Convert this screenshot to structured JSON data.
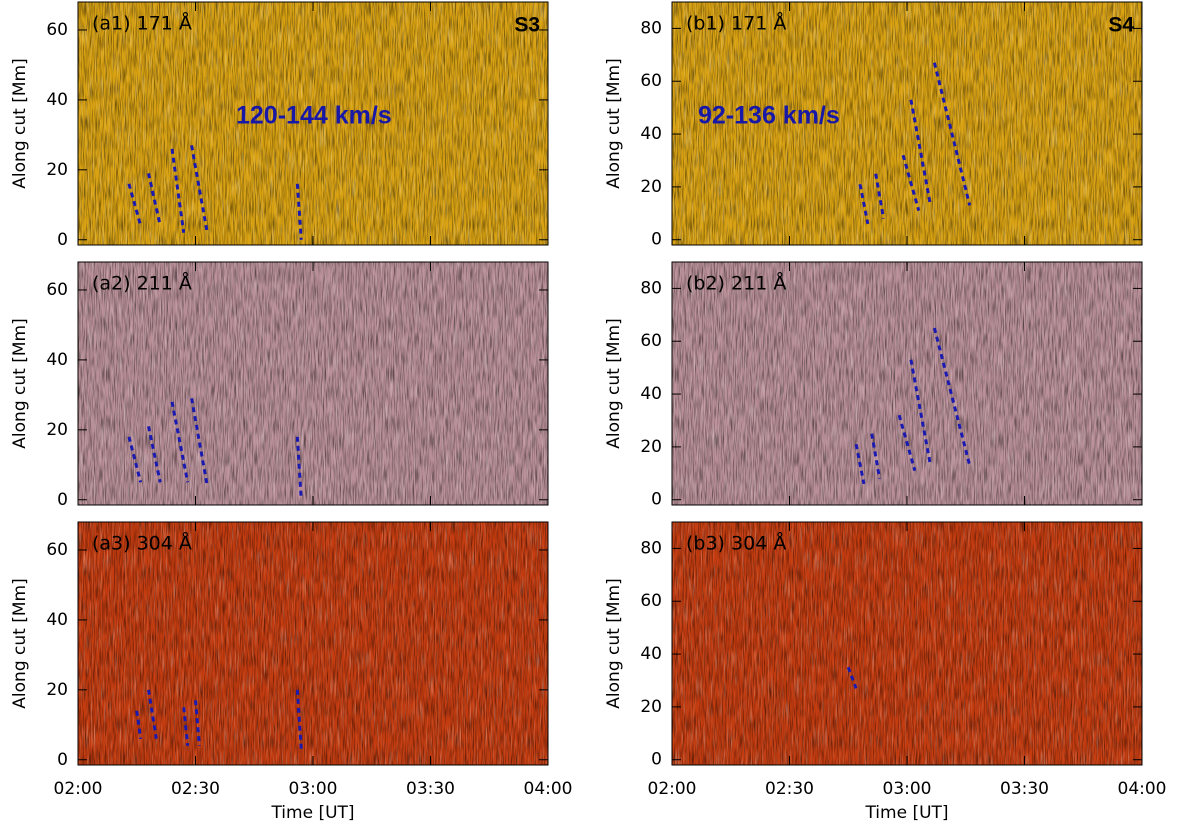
{
  "chart_data": [
    {
      "type": "heatmap",
      "label": "(a1) 171 Å",
      "tag": "S3",
      "annotation": "120-144 km/s",
      "color": "#d9a212",
      "ylabel": "Along cut [Mm]",
      "xlim": [
        "02:00",
        "04:00"
      ],
      "xticks": [
        "02:00",
        "02:30",
        "03:00",
        "03:30",
        "04:00"
      ],
      "ylim": [
        -1.5,
        68
      ],
      "yticks": [
        0,
        20,
        40,
        60
      ],
      "lines": [
        {
          "x": [
            "02:13",
            "02:16"
          ],
          "y": [
            16,
            4
          ]
        },
        {
          "x": [
            "02:18",
            "02:21"
          ],
          "y": [
            19,
            4
          ]
        },
        {
          "x": [
            "02:24",
            "02:27"
          ],
          "y": [
            26,
            2
          ]
        },
        {
          "x": [
            "02:29",
            "02:33"
          ],
          "y": [
            27,
            2
          ]
        },
        {
          "x": [
            "02:56",
            "02:57"
          ],
          "y": [
            16,
            0
          ]
        }
      ]
    },
    {
      "type": "heatmap",
      "label": "(a2) 211 Å",
      "color": "#b98f98",
      "ylabel": "Along cut [Mm]",
      "xlim": [
        "02:00",
        "04:00"
      ],
      "xticks": [
        "02:00",
        "02:30",
        "03:00",
        "03:30",
        "04:00"
      ],
      "ylim": [
        -1.5,
        68
      ],
      "yticks": [
        0,
        20,
        40,
        60
      ],
      "lines": [
        {
          "x": [
            "02:13",
            "02:16"
          ],
          "y": [
            18,
            5
          ]
        },
        {
          "x": [
            "02:18",
            "02:21"
          ],
          "y": [
            21,
            5
          ]
        },
        {
          "x": [
            "02:24",
            "02:28"
          ],
          "y": [
            28,
            5
          ]
        },
        {
          "x": [
            "02:29",
            "02:33"
          ],
          "y": [
            29,
            4
          ]
        },
        {
          "x": [
            "02:56",
            "02:57"
          ],
          "y": [
            18,
            0
          ]
        }
      ]
    },
    {
      "type": "heatmap",
      "label": "(a3) 304 Å",
      "color": "#c43c10",
      "ylabel": "Along cut [Mm]",
      "xlabel": "Time [UT]",
      "xlim": [
        "02:00",
        "04:00"
      ],
      "xticks": [
        "02:00",
        "02:30",
        "03:00",
        "03:30",
        "04:00"
      ],
      "ylim": [
        -1.5,
        68
      ],
      "yticks": [
        0,
        20,
        40,
        60
      ],
      "lines": [
        {
          "x": [
            "02:15",
            "02:16"
          ],
          "y": [
            14,
            6
          ]
        },
        {
          "x": [
            "02:18",
            "02:20"
          ],
          "y": [
            20,
            6
          ]
        },
        {
          "x": [
            "02:27",
            "02:28"
          ],
          "y": [
            15,
            4
          ]
        },
        {
          "x": [
            "02:30",
            "02:31"
          ],
          "y": [
            17,
            4
          ]
        },
        {
          "x": [
            "02:56",
            "02:57"
          ],
          "y": [
            20,
            3
          ]
        }
      ]
    },
    {
      "type": "heatmap",
      "label": "(b1) 171 Å",
      "tag": "S4",
      "annotation": "92-136 km/s",
      "color": "#d9a212",
      "ylabel": "Along cut [Mm]",
      "xlim": [
        "02:00",
        "04:00"
      ],
      "xticks": [
        "02:00",
        "02:30",
        "03:00",
        "03:30",
        "04:00"
      ],
      "ylim": [
        -2,
        90
      ],
      "yticks": [
        0,
        20,
        40,
        60,
        80
      ],
      "lines": [
        {
          "x": [
            "02:48",
            "02:50"
          ],
          "y": [
            21,
            6
          ]
        },
        {
          "x": [
            "02:52",
            "02:54"
          ],
          "y": [
            25,
            8
          ]
        },
        {
          "x": [
            "02:59",
            "03:03"
          ],
          "y": [
            32,
            11
          ]
        },
        {
          "x": [
            "03:01",
            "03:06"
          ],
          "y": [
            53,
            13
          ]
        },
        {
          "x": [
            "03:07",
            "03:16"
          ],
          "y": [
            67,
            13
          ]
        }
      ]
    },
    {
      "type": "heatmap",
      "label": "(b2) 211 Å",
      "color": "#b98f98",
      "ylabel": "Along cut [Mm]",
      "xlim": [
        "02:00",
        "04:00"
      ],
      "xticks": [
        "02:00",
        "02:30",
        "03:00",
        "03:30",
        "04:00"
      ],
      "ylim": [
        -2,
        90
      ],
      "yticks": [
        0,
        20,
        40,
        60,
        80
      ],
      "lines": [
        {
          "x": [
            "02:47",
            "02:49"
          ],
          "y": [
            21,
            6
          ]
        },
        {
          "x": [
            "02:51",
            "02:53"
          ],
          "y": [
            25,
            8
          ]
        },
        {
          "x": [
            "02:58",
            "03:02"
          ],
          "y": [
            32,
            11
          ]
        },
        {
          "x": [
            "03:01",
            "03:06"
          ],
          "y": [
            53,
            13
          ]
        },
        {
          "x": [
            "03:07",
            "03:16"
          ],
          "y": [
            65,
            13
          ]
        }
      ]
    },
    {
      "type": "heatmap",
      "label": "(b3) 304 Å",
      "color": "#c43c10",
      "ylabel": "Along cut [Mm]",
      "xlabel": "Time [UT]",
      "xlim": [
        "02:00",
        "04:00"
      ],
      "xticks": [
        "02:00",
        "02:30",
        "03:00",
        "03:30",
        "04:00"
      ],
      "ylim": [
        -2,
        90
      ],
      "yticks": [
        0,
        20,
        40,
        60,
        80
      ],
      "lines": [
        {
          "x": [
            "02:45",
            "02:47"
          ],
          "y": [
            35,
            27
          ]
        }
      ]
    }
  ]
}
